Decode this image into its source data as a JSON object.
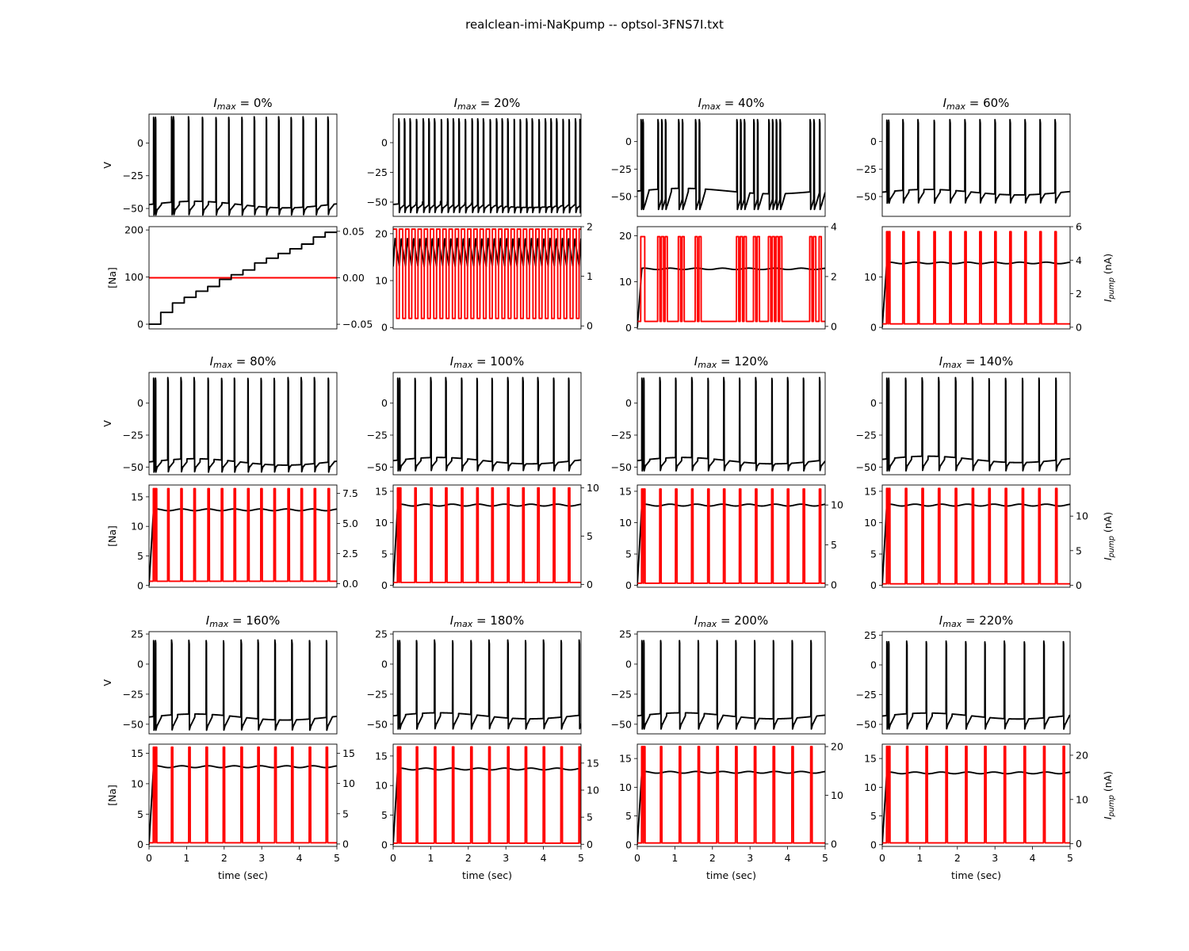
{
  "figure": {
    "title": "realclean-imi-NaKpump -- optsol-3FNS7I.txt",
    "xlabel": "time (sec)",
    "ylabel_v": "V",
    "ylabel_na": "[Na]",
    "ylabel_pump": "I",
    "ylabel_pump_sub": "pump",
    "ylabel_pump_unit": " (nA)",
    "panel_title_prefix": "I",
    "panel_title_sub": "max",
    "colors": {
      "voltage": "#000000",
      "sodium": "#000000",
      "pump": "#ff0000"
    }
  },
  "chart_data": [
    {
      "type": "line",
      "panel_title": "0%",
      "x_range": [
        0,
        5
      ],
      "voltage": {
        "ylim": [
          -56,
          22
        ],
        "yticks": [
          -50,
          -25,
          0
        ],
        "rest": -47,
        "trough": -55,
        "peak": 20,
        "spike_times": [
          0.12,
          0.17,
          0.6,
          0.65,
          1.05,
          1.42,
          1.78,
          2.12,
          2.47,
          2.8,
          3.12,
          3.45,
          3.78,
          4.1,
          4.44,
          4.76
        ]
      },
      "sodium": {
        "ylim": [
          -10,
          207
        ],
        "yticks": [
          0,
          100,
          200
        ],
        "kind": "staircase",
        "steps": [
          0,
          25,
          45,
          57,
          70,
          80,
          95,
          105,
          115,
          130,
          140,
          150,
          160,
          170,
          185,
          195
        ]
      },
      "pump": {
        "ylim": [
          -0.055,
          0.055
        ],
        "yticks": [
          -0.05,
          0.0,
          0.05
        ],
        "tick_labels": [
          "−0.05",
          "0.00",
          "0.05"
        ],
        "kind": "flat",
        "level": 0.0
      },
      "axis_labels": {
        "ylabel_left": true,
        "ylabel_right": false,
        "xlabel": false
      }
    },
    {
      "type": "line",
      "panel_title": "20%",
      "x_range": [
        0,
        5
      ],
      "voltage": {
        "ylim": [
          -62,
          24
        ],
        "yticks": [
          -50,
          -25,
          0
        ],
        "rest": -52,
        "trough": -59,
        "peak": 20,
        "spike_times": [
          0.15,
          0.3,
          0.45,
          0.62,
          0.8,
          0.95,
          1.1,
          1.28,
          1.45,
          1.6,
          1.75,
          1.92,
          2.1,
          2.25,
          2.4,
          2.58,
          2.75,
          2.9,
          3.05,
          3.22,
          3.38,
          3.55,
          3.7,
          3.88,
          4.05,
          4.2,
          4.35,
          4.52,
          4.68,
          4.85,
          4.97
        ]
      },
      "sodium": {
        "ylim": [
          -0.3,
          21.5
        ],
        "yticks": [
          0,
          10,
          20
        ],
        "kind": "oscillating",
        "base": 14,
        "peak_val": 19,
        "trough_val": 13
      },
      "pump": {
        "ylim": [
          -0.06,
          2.0
        ],
        "yticks": [
          0,
          1,
          2
        ],
        "tick_labels": [
          "0",
          "1",
          "2"
        ],
        "kind": "plateaus",
        "high": 1.95,
        "low": 0.15,
        "duty": 0.55
      },
      "axis_labels": {
        "ylabel_left": false,
        "ylabel_right": false,
        "xlabel": false
      }
    },
    {
      "type": "line",
      "panel_title": "40%",
      "x_range": [
        0,
        5
      ],
      "voltage": {
        "ylim": [
          -68,
          25
        ],
        "yticks": [
          -50,
          -25,
          0
        ],
        "rest": -45,
        "trough": -62,
        "peak": 20,
        "spike_times": [
          0.1,
          0.15,
          0.55,
          0.65,
          0.75,
          1.1,
          1.2,
          1.55,
          1.65,
          2.65,
          2.75,
          2.85,
          3.1,
          3.2,
          3.5,
          3.6,
          3.7,
          3.8,
          4.6,
          4.7,
          4.85
        ]
      },
      "sodium": {
        "ylim": [
          -0.3,
          22
        ],
        "yticks": [
          0,
          10,
          20
        ],
        "kind": "flat_bursts",
        "base": 12.8
      },
      "pump": {
        "ylim": [
          -0.1,
          4.0
        ],
        "yticks": [
          0,
          2,
          4
        ],
        "tick_labels": [
          "0",
          "2",
          "4"
        ],
        "kind": "bursts",
        "high": 3.6,
        "low": 0.2
      },
      "axis_labels": {
        "ylabel_left": false,
        "ylabel_right": false,
        "xlabel": false
      }
    },
    {
      "type": "line",
      "panel_title": "60%",
      "x_range": [
        0,
        5
      ],
      "voltage": {
        "ylim": [
          -68,
          25
        ],
        "yticks": [
          -50,
          -25,
          0
        ],
        "rest": -46,
        "trough": -56,
        "peak": 20,
        "spike_times": [
          0.12,
          0.17,
          0.55,
          0.95,
          1.38,
          1.8,
          2.2,
          2.6,
          3.0,
          3.4,
          3.8,
          4.2,
          4.6
        ]
      },
      "sodium": {
        "ylim": [
          -0.3,
          20
        ],
        "yticks": [
          0,
          10
        ],
        "kind": "flat_spikes",
        "base": 12.8
      },
      "pump": {
        "ylim": [
          -0.1,
          6.0
        ],
        "yticks": [
          0,
          2,
          4,
          6
        ],
        "tick_labels": [
          "0",
          "2",
          "4",
          "6"
        ],
        "kind": "spikes",
        "high": 5.7,
        "low": 0.2
      },
      "axis_labels": {
        "ylabel_left": false,
        "ylabel_right": true,
        "xlabel": false
      }
    },
    {
      "type": "line",
      "panel_title": "80%",
      "x_range": [
        0,
        5
      ],
      "voltage": {
        "ylim": [
          -56,
          24
        ],
        "yticks": [
          -50,
          -25,
          0
        ],
        "rest": -46,
        "trough": -54,
        "peak": 20,
        "spike_times": [
          0.12,
          0.17,
          0.5,
          0.85,
          1.2,
          1.57,
          1.93,
          2.27,
          2.63,
          2.98,
          3.33,
          3.7,
          4.05,
          4.4,
          4.77
        ]
      },
      "sodium": {
        "ylim": [
          -0.3,
          17
        ],
        "yticks": [
          0,
          5,
          10,
          15
        ],
        "kind": "flat_spikes",
        "base": 12.8
      },
      "pump": {
        "ylim": [
          -0.3,
          8.2
        ],
        "yticks": [
          0.0,
          2.5,
          5.0,
          7.5
        ],
        "tick_labels": [
          "0.0",
          "2.5",
          "5.0",
          "7.5"
        ],
        "kind": "spikes",
        "high": 7.9,
        "low": 0.2
      },
      "axis_labels": {
        "ylabel_left": true,
        "ylabel_right": false,
        "xlabel": false
      }
    },
    {
      "type": "line",
      "panel_title": "100%",
      "x_range": [
        0,
        5
      ],
      "voltage": {
        "ylim": [
          -56,
          24
        ],
        "yticks": [
          -50,
          -25,
          0
        ],
        "rest": -45,
        "trough": -53,
        "peak": 20,
        "spike_times": [
          0.12,
          0.17,
          0.58,
          1.0,
          1.4,
          1.82,
          2.23,
          2.63,
          3.05,
          3.45,
          3.85,
          4.27,
          4.67
        ]
      },
      "sodium": {
        "ylim": [
          -0.3,
          16
        ],
        "yticks": [
          0,
          5,
          10,
          15
        ],
        "kind": "flat_spikes",
        "base": 12.8
      },
      "pump": {
        "ylim": [
          -0.3,
          10.3
        ],
        "yticks": [
          0,
          5,
          10
        ],
        "tick_labels": [
          "0",
          "5",
          "10"
        ],
        "kind": "spikes",
        "high": 10,
        "low": 0.2
      },
      "axis_labels": {
        "ylabel_left": false,
        "ylabel_right": false,
        "xlabel": false
      }
    },
    {
      "type": "line",
      "panel_title": "120%",
      "x_range": [
        0,
        5
      ],
      "voltage": {
        "ylim": [
          -56,
          24
        ],
        "yticks": [
          -50,
          -25,
          0
        ],
        "rest": -45,
        "trough": -53,
        "peak": 20,
        "spike_times": [
          0.12,
          0.17,
          0.6,
          1.02,
          1.45,
          1.88,
          2.3,
          2.72,
          3.15,
          3.58,
          4.0,
          4.42,
          4.85
        ]
      },
      "sodium": {
        "ylim": [
          -0.3,
          16
        ],
        "yticks": [
          0,
          5,
          10,
          15
        ],
        "kind": "flat_spikes",
        "base": 12.8
      },
      "pump": {
        "ylim": [
          -0.3,
          12.5
        ],
        "yticks": [
          0,
          5,
          10
        ],
        "tick_labels": [
          "0",
          "5",
          "10"
        ],
        "kind": "spikes",
        "high": 12,
        "low": 0.2
      },
      "axis_labels": {
        "ylabel_left": false,
        "ylabel_right": false,
        "xlabel": false
      }
    },
    {
      "type": "line",
      "panel_title": "140%",
      "x_range": [
        0,
        5
      ],
      "voltage": {
        "ylim": [
          -56,
          24
        ],
        "yticks": [
          -50,
          -25,
          0
        ],
        "rest": -44,
        "trough": -53,
        "peak": 20,
        "spike_times": [
          0.12,
          0.17,
          0.62,
          1.06,
          1.5,
          1.95,
          2.4,
          2.84,
          3.28,
          3.73,
          4.17,
          4.62
        ]
      },
      "sodium": {
        "ylim": [
          -0.3,
          16
        ],
        "yticks": [
          0,
          5,
          10,
          15
        ],
        "kind": "flat_spikes",
        "base": 12.8
      },
      "pump": {
        "ylim": [
          -0.3,
          14.5
        ],
        "yticks": [
          0,
          5,
          10
        ],
        "tick_labels": [
          "0",
          "5",
          "10"
        ],
        "kind": "spikes",
        "high": 14,
        "low": 0.2
      },
      "axis_labels": {
        "ylabel_left": false,
        "ylabel_right": true,
        "xlabel": false
      }
    },
    {
      "type": "line",
      "panel_title": "160%",
      "x_range": [
        0,
        5
      ],
      "voltage": {
        "ylim": [
          -58,
          27
        ],
        "yticks": [
          -50,
          -25,
          0,
          25
        ],
        "rest": -44,
        "trough": -55,
        "peak": 20,
        "spike_times": [
          0.12,
          0.17,
          0.6,
          1.06,
          1.52,
          1.98,
          2.45,
          2.9,
          3.35,
          3.8,
          4.27,
          4.72
        ]
      },
      "sodium": {
        "ylim": [
          -0.3,
          16.5
        ],
        "yticks": [
          0,
          5,
          10,
          15
        ],
        "kind": "flat_spikes",
        "base": 12.8
      },
      "pump": {
        "ylim": [
          -0.4,
          16.5
        ],
        "yticks": [
          0,
          5,
          10,
          15
        ],
        "tick_labels": [
          "0",
          "5",
          "10",
          "15"
        ],
        "kind": "spikes",
        "high": 16,
        "low": 0.2
      },
      "axis_labels": {
        "ylabel_left": true,
        "ylabel_right": false,
        "xlabel": true
      }
    },
    {
      "type": "line",
      "panel_title": "180%",
      "x_range": [
        0,
        5
      ],
      "voltage": {
        "ylim": [
          -58,
          27
        ],
        "yticks": [
          -50,
          -25,
          0,
          25
        ],
        "rest": -43,
        "trough": -54,
        "peak": 20,
        "spike_times": [
          0.12,
          0.17,
          0.62,
          1.1,
          1.58,
          2.07,
          2.55,
          3.05,
          3.52,
          4.0,
          4.47,
          4.95
        ]
      },
      "sodium": {
        "ylim": [
          -0.3,
          17
        ],
        "yticks": [
          0,
          5,
          10,
          15
        ],
        "kind": "flat_spikes",
        "base": 12.8
      },
      "pump": {
        "ylim": [
          -0.4,
          18.5
        ],
        "yticks": [
          0,
          5,
          10,
          15
        ],
        "tick_labels": [
          "0",
          "5",
          "10",
          "15"
        ],
        "kind": "spikes",
        "high": 18,
        "low": 0.2
      },
      "axis_labels": {
        "ylabel_left": false,
        "ylabel_right": false,
        "xlabel": true
      }
    },
    {
      "type": "line",
      "panel_title": "200%",
      "x_range": [
        0,
        5
      ],
      "voltage": {
        "ylim": [
          -58,
          27
        ],
        "yticks": [
          -50,
          -25,
          0,
          25
        ],
        "rest": -43,
        "trough": -54,
        "peak": 20,
        "spike_times": [
          0.12,
          0.17,
          0.62,
          1.12,
          1.62,
          2.12,
          2.62,
          3.12,
          3.62,
          4.12,
          4.62
        ]
      },
      "sodium": {
        "ylim": [
          -0.3,
          17.5
        ],
        "yticks": [
          0,
          5,
          10,
          15
        ],
        "kind": "flat_spikes",
        "base": 12.6
      },
      "pump": {
        "ylim": [
          -0.5,
          20.5
        ],
        "yticks": [
          0,
          10,
          20
        ],
        "tick_labels": [
          "0",
          "10",
          "20"
        ],
        "kind": "spikes",
        "high": 20,
        "low": 0.2
      },
      "axis_labels": {
        "ylabel_left": false,
        "ylabel_right": false,
        "xlabel": true
      }
    },
    {
      "type": "line",
      "panel_title": "220%",
      "x_range": [
        0,
        5
      ],
      "voltage": {
        "ylim": [
          -58,
          28
        ],
        "yticks": [
          -50,
          -25,
          0,
          25
        ],
        "rest": -43,
        "trough": -54,
        "peak": 20,
        "spike_times": [
          0.12,
          0.17,
          0.65,
          1.17,
          1.7,
          2.22,
          2.73,
          3.25,
          3.78,
          4.3,
          4.82
        ]
      },
      "sodium": {
        "ylim": [
          -0.3,
          17.5
        ],
        "yticks": [
          0,
          5,
          10,
          15
        ],
        "kind": "flat_spikes",
        "base": 12.5
      },
      "pump": {
        "ylim": [
          -0.6,
          22.5
        ],
        "yticks": [
          0,
          10,
          20
        ],
        "tick_labels": [
          "0",
          "10",
          "20"
        ],
        "kind": "spikes",
        "high": 22,
        "low": 0.2
      },
      "axis_labels": {
        "ylabel_left": false,
        "ylabel_right": true,
        "xlabel": true
      }
    }
  ]
}
